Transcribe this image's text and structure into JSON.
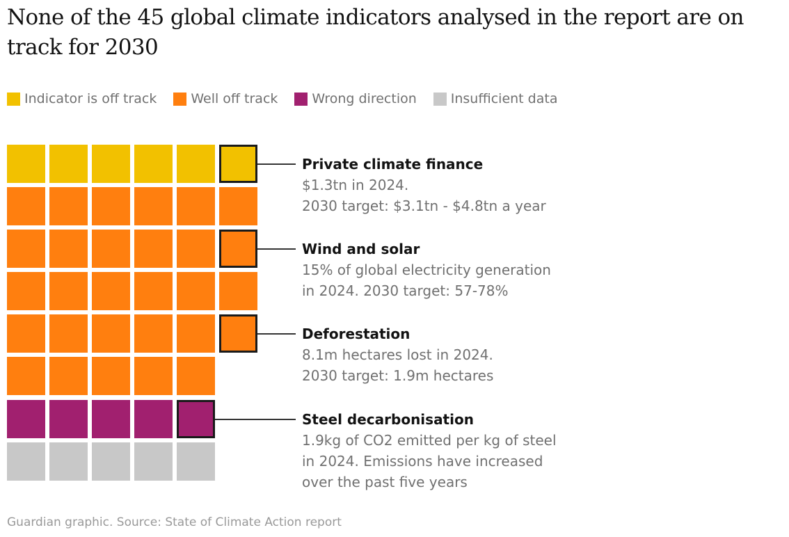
{
  "chart_data": {
    "type": "waffle",
    "title": "None of the 45 global climate indicators analysed in the report are on track for 2030",
    "total": 45,
    "columns": 6,
    "legend": [
      {
        "key": "off",
        "label": "Indicator is off track",
        "color": "#f2c100"
      },
      {
        "key": "well",
        "label": "Well off track",
        "color": "#ff7f0f"
      },
      {
        "key": "wrong",
        "label": "Wrong direction",
        "color": "#a1206f"
      },
      {
        "key": "insufficient",
        "label": "Insufficient data",
        "color": "#c8c8c8"
      }
    ],
    "rows": [
      {
        "category": "off",
        "count": 6,
        "highlight_index": 5
      },
      {
        "category": "well",
        "count": 6,
        "highlight_index": -1
      },
      {
        "category": "well",
        "count": 6,
        "highlight_index": 5
      },
      {
        "category": "well",
        "count": 6,
        "highlight_index": -1
      },
      {
        "category": "well",
        "count": 6,
        "highlight_index": 5
      },
      {
        "category": "well",
        "count": 5,
        "highlight_index": -1
      },
      {
        "category": "wrong",
        "count": 5,
        "highlight_index": 4
      },
      {
        "category": "insufficient",
        "count": 5,
        "highlight_index": -1
      }
    ],
    "counts": {
      "off": 6,
      "well": 29,
      "wrong": 5,
      "insufficient": 5
    },
    "annotations": [
      {
        "row": 0,
        "title": "Private climate finance",
        "lines": [
          "$1.3tn in 2024.",
          "2030 target: $3.1tn - $4.8tn a year"
        ]
      },
      {
        "row": 2,
        "title": "Wind and solar",
        "lines": [
          "15% of global electricity generation",
          "in 2024. 2030 target: 57-78%"
        ]
      },
      {
        "row": 4,
        "title": "Deforestation",
        "lines": [
          "8.1m hectares lost in 2024.",
          "2030 target: 1.9m hectares"
        ]
      },
      {
        "row": 6,
        "title": "Steel decarbonisation",
        "lines": [
          "1.9kg of CO2 emitted per kg of steel",
          "in 2024. Emissions have increased",
          "over the past five years"
        ]
      }
    ]
  },
  "source": "Guardian graphic. Source: State of Climate Action report"
}
